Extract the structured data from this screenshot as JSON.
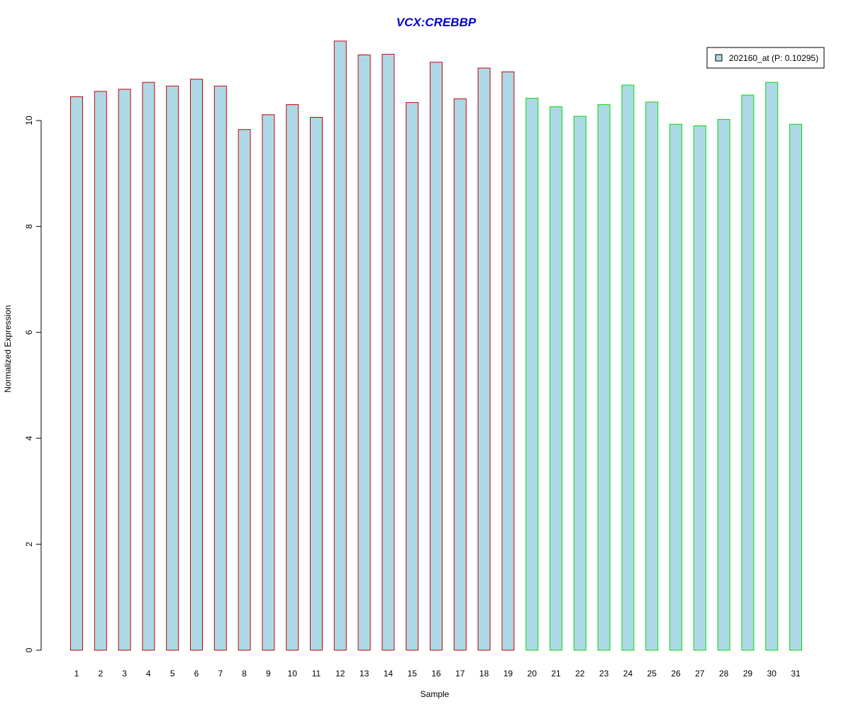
{
  "chart_data": {
    "type": "bar",
    "title": "VCX:CREBBP",
    "xlabel": "Sample",
    "ylabel": "Normalized Expression",
    "categories": [
      "1",
      "2",
      "3",
      "4",
      "5",
      "6",
      "7",
      "8",
      "9",
      "10",
      "11",
      "12",
      "13",
      "14",
      "15",
      "16",
      "17",
      "18",
      "19",
      "20",
      "21",
      "22",
      "23",
      "24",
      "25",
      "26",
      "27",
      "28",
      "29",
      "30",
      "31"
    ],
    "series": [
      {
        "name": "202160_at (P: 0.10295)",
        "values": [
          10.45,
          10.55,
          10.59,
          10.72,
          10.65,
          10.78,
          10.65,
          9.83,
          10.11,
          10.3,
          10.06,
          11.5,
          11.24,
          11.25,
          10.34,
          11.1,
          10.41,
          10.99,
          10.92,
          10.42,
          10.26,
          10.08,
          10.3,
          10.67,
          10.35,
          9.93,
          9.9,
          10.02,
          10.48,
          10.72,
          9.93
        ]
      }
    ],
    "ylim": [
      0,
      11.5
    ],
    "yticks": [
      "0",
      "2",
      "4",
      "6",
      "8",
      "10"
    ],
    "legend_position": "top-right",
    "grid": false,
    "colors": {
      "title": "#0000CC",
      "bar_fill": "#ADD8E6",
      "bar_edge_group_1": "#CC0000",
      "bar_edge_group_2": "#00DD00"
    },
    "group_1_count": 19
  }
}
